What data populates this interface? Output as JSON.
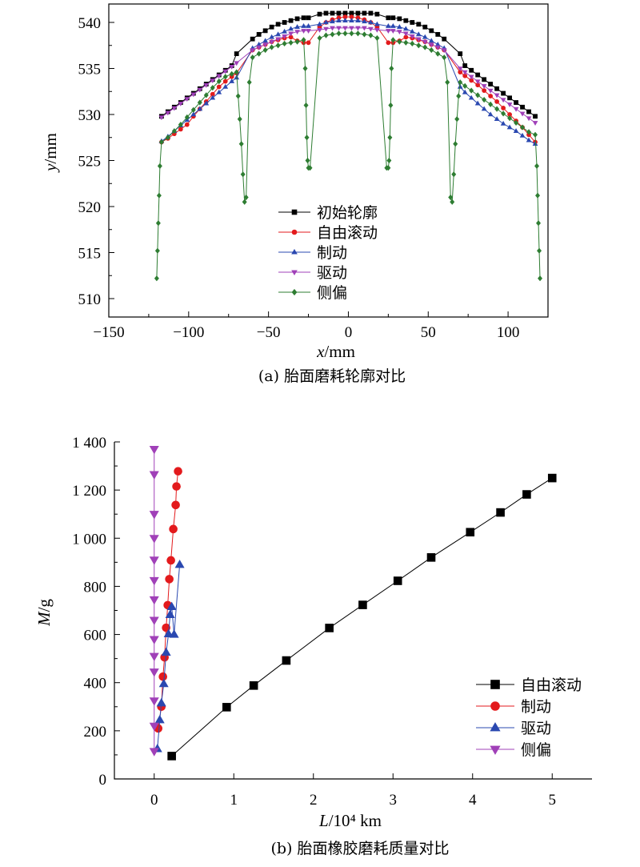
{
  "chart_data": [
    {
      "type": "scatter",
      "caption": "(a) 胎面磨耗轮廓对比",
      "xlabel_var": "x",
      "xlabel_unit": "/mm",
      "ylabel_var": "y",
      "ylabel_unit": "/mm",
      "xlim": [
        -150,
        125
      ],
      "ylim": [
        508,
        542
      ],
      "xticks": [
        -150,
        -100,
        -50,
        0,
        50,
        100
      ],
      "xtick_labels": [
        "−150",
        "−100",
        "−50",
        "0",
        "50",
        "100"
      ],
      "yticks": [
        510,
        515,
        520,
        525,
        530,
        535,
        540
      ],
      "ytick_labels": [
        "510",
        "515",
        "520",
        "525",
        "530",
        "535",
        "540"
      ],
      "legend_position": "bottom-center",
      "series": [
        {
          "name": "初始轮廓",
          "color": "#000000",
          "marker": "square",
          "x": [
            -117,
            -113,
            -109,
            -105,
            -101,
            -97,
            -93,
            -89,
            -85,
            -81,
            -77,
            -73,
            -70,
            -60,
            -56,
            -52,
            -48,
            -44,
            -40,
            -36,
            -32,
            -28,
            -25,
            -18,
            -14,
            -10,
            -6,
            -2,
            2,
            6,
            10,
            14,
            18,
            25,
            28,
            32,
            36,
            40,
            44,
            48,
            52,
            56,
            60,
            70,
            73,
            77,
            81,
            85,
            89,
            93,
            97,
            101,
            105,
            109,
            113,
            117
          ],
          "y": [
            529.8,
            530.3,
            530.8,
            531.3,
            531.8,
            532.3,
            532.8,
            533.3,
            533.8,
            534.3,
            534.8,
            535.3,
            536.6,
            538.2,
            538.7,
            539.1,
            539.5,
            539.8,
            540.0,
            540.2,
            540.4,
            540.5,
            540.5,
            540.9,
            541.0,
            541.0,
            541.0,
            541.0,
            541.0,
            541.0,
            541.0,
            541.0,
            540.9,
            540.5,
            540.5,
            540.4,
            540.2,
            540.0,
            539.8,
            539.5,
            539.1,
            538.7,
            538.2,
            536.6,
            535.3,
            534.8,
            534.3,
            533.8,
            533.3,
            532.8,
            532.3,
            531.8,
            531.3,
            530.8,
            530.3,
            529.8
          ]
        },
        {
          "name": "自由滚动",
          "color": "#e31a1c",
          "marker": "circle",
          "x": [
            -117,
            -113,
            -109,
            -105,
            -101,
            -97,
            -93,
            -89,
            -85,
            -81,
            -77,
            -73,
            -70,
            -60,
            -56,
            -52,
            -48,
            -44,
            -40,
            -36,
            -32,
            -28,
            -25,
            -18,
            -14,
            -10,
            -6,
            -2,
            2,
            6,
            10,
            14,
            18,
            25,
            28,
            32,
            36,
            40,
            44,
            48,
            52,
            56,
            60,
            70,
            73,
            77,
            81,
            85,
            89,
            93,
            97,
            101,
            105,
            109,
            113,
            117
          ],
          "y": [
            527.0,
            527.4,
            527.9,
            528.4,
            528.9,
            529.8,
            530.6,
            531.4,
            532.2,
            533.0,
            533.6,
            534.1,
            534.5,
            537.0,
            537.3,
            537.6,
            537.9,
            538.1,
            538.3,
            538.4,
            538.0,
            537.8,
            537.8,
            539.5,
            540.0,
            540.3,
            540.5,
            540.6,
            540.6,
            540.5,
            540.3,
            540.0,
            539.5,
            537.8,
            537.8,
            538.0,
            538.4,
            538.3,
            538.1,
            537.9,
            537.6,
            537.3,
            537.0,
            534.6,
            534.2,
            533.7,
            533.2,
            532.6,
            532.0,
            531.4,
            530.7,
            530.0,
            529.3,
            528.6,
            527.8,
            527.0
          ]
        },
        {
          "name": "制动",
          "color": "#2a48b0",
          "marker": "triangle-up",
          "x": [
            -117,
            -113,
            -109,
            -105,
            -101,
            -97,
            -93,
            -89,
            -85,
            -81,
            -77,
            -73,
            -70,
            -60,
            -56,
            -52,
            -48,
            -44,
            -40,
            -36,
            -32,
            -28,
            -25,
            -18,
            -14,
            -10,
            -6,
            -2,
            2,
            6,
            10,
            14,
            18,
            25,
            28,
            32,
            36,
            40,
            44,
            48,
            52,
            56,
            60,
            70,
            73,
            77,
            81,
            85,
            89,
            93,
            97,
            101,
            105,
            109,
            113,
            117
          ],
          "y": [
            527.1,
            527.6,
            528.2,
            528.8,
            529.4,
            530.0,
            530.6,
            531.2,
            531.8,
            532.4,
            533.0,
            533.6,
            534.0,
            537.2,
            537.6,
            538.0,
            538.4,
            538.7,
            539.0,
            539.3,
            539.5,
            539.6,
            539.6,
            539.8,
            540.0,
            540.1,
            540.2,
            540.2,
            540.2,
            540.2,
            540.1,
            540.0,
            539.8,
            539.6,
            539.6,
            539.5,
            539.3,
            539.0,
            538.7,
            538.4,
            538.0,
            537.6,
            537.2,
            533.0,
            532.4,
            531.8,
            531.2,
            530.6,
            530.0,
            529.5,
            529.0,
            528.6,
            528.2,
            527.7,
            527.2,
            526.8
          ]
        },
        {
          "name": "驱动",
          "color": "#a040b8",
          "marker": "triangle-down",
          "x": [
            -117,
            -113,
            -109,
            -105,
            -101,
            -97,
            -93,
            -89,
            -85,
            -81,
            -77,
            -73,
            -70,
            -60,
            -56,
            -52,
            -48,
            -44,
            -40,
            -36,
            -32,
            -28,
            -25,
            -18,
            -14,
            -10,
            -6,
            -2,
            2,
            6,
            10,
            14,
            18,
            25,
            28,
            32,
            36,
            40,
            44,
            48,
            52,
            56,
            60,
            70,
            73,
            77,
            81,
            85,
            89,
            93,
            97,
            101,
            105,
            109,
            113,
            117
          ],
          "y": [
            529.7,
            530.2,
            530.7,
            531.2,
            531.7,
            532.2,
            532.7,
            533.2,
            533.7,
            534.2,
            534.7,
            535.2,
            535.6,
            537.0,
            537.3,
            537.6,
            537.9,
            538.2,
            538.5,
            538.8,
            539.0,
            539.1,
            539.1,
            539.2,
            539.3,
            539.4,
            539.4,
            539.4,
            539.4,
            539.4,
            539.4,
            539.3,
            539.2,
            539.1,
            539.1,
            539.0,
            538.8,
            538.5,
            538.2,
            537.9,
            537.6,
            537.3,
            537.0,
            535.0,
            534.6,
            534.1,
            533.6,
            533.1,
            532.6,
            532.1,
            531.6,
            531.1,
            530.6,
            530.1,
            529.6,
            529.1
          ]
        },
        {
          "name": "侧偏",
          "color": "#2e7d32",
          "marker": "diamond",
          "x": [
            -120,
            -119.5,
            -119,
            -118.5,
            -118,
            -117,
            -113,
            -109,
            -105,
            -101,
            -97,
            -93,
            -89,
            -85,
            -81,
            -77,
            -73,
            -70,
            -69,
            -68,
            -67,
            -66,
            -65,
            -64,
            -62,
            -60,
            -56,
            -52,
            -48,
            -44,
            -40,
            -36,
            -32,
            -28,
            -27,
            -26.5,
            -26,
            -25.5,
            -25,
            -24,
            -18,
            -14,
            -10,
            -6,
            -2,
            2,
            6,
            10,
            14,
            18,
            24,
            25,
            25.5,
            26,
            26.5,
            27,
            28,
            32,
            36,
            40,
            44,
            48,
            52,
            56,
            60,
            62,
            64,
            65,
            66,
            67,
            68,
            69,
            70,
            73,
            77,
            81,
            85,
            89,
            93,
            97,
            101,
            105,
            109,
            113,
            117,
            118,
            118.5,
            119,
            119.5,
            120
          ],
          "y": [
            512.2,
            515.2,
            518.2,
            521.2,
            524.4,
            527.0,
            527.5,
            528.2,
            528.9,
            529.7,
            530.5,
            531.3,
            532.1,
            532.9,
            533.6,
            534.1,
            534.4,
            534.6,
            532.0,
            529.5,
            526.8,
            523.5,
            520.5,
            521.0,
            533.5,
            536.2,
            536.6,
            537.0,
            537.3,
            537.5,
            537.7,
            537.8,
            537.9,
            538.1,
            535.0,
            531.0,
            527.5,
            525.0,
            524.2,
            524.2,
            538.3,
            538.6,
            538.7,
            538.8,
            538.8,
            538.8,
            538.8,
            538.7,
            538.6,
            538.3,
            524.2,
            524.2,
            525.0,
            527.5,
            531.0,
            535.0,
            538.1,
            537.9,
            537.8,
            537.7,
            537.5,
            537.3,
            537.0,
            536.6,
            536.2,
            533.5,
            521.0,
            520.5,
            523.5,
            526.8,
            529.5,
            532.0,
            533.5,
            533.1,
            532.6,
            532.1,
            531.6,
            531.1,
            530.6,
            530.1,
            529.6,
            529.1,
            528.6,
            528.1,
            527.8,
            524.4,
            521.2,
            518.2,
            515.2,
            512.2
          ]
        }
      ]
    },
    {
      "type": "line",
      "caption": "(b) 胎面橡胶磨耗质量对比",
      "xlabel_var": "L",
      "xlabel_unit": "/10⁴ km",
      "ylabel_var": "M",
      "ylabel_unit": "/g",
      "xlim": [
        -0.5,
        5.5
      ],
      "ylim": [
        0,
        1400
      ],
      "xticks": [
        0,
        1,
        2,
        3,
        4,
        5
      ],
      "xtick_labels": [
        "0",
        "1",
        "2",
        "3",
        "4",
        "5"
      ],
      "yticks": [
        0,
        200,
        400,
        600,
        800,
        1000,
        1200,
        1400
      ],
      "ytick_labels": [
        "0",
        "200",
        "400",
        "600",
        "800",
        "1 000",
        "1 200",
        "1 400"
      ],
      "legend_position": "bottom-right",
      "series": [
        {
          "name": "自由滚动",
          "color": "#000000",
          "marker": "square",
          "x": [
            0.22,
            0.91,
            1.25,
            1.66,
            2.2,
            2.62,
            3.06,
            3.48,
            3.97,
            4.35,
            4.68,
            5.0
          ],
          "y": [
            95,
            298,
            388,
            492,
            627,
            723,
            823,
            920,
            1025,
            1107,
            1182,
            1250
          ]
        },
        {
          "name": "制动",
          "color": "#e31a1c",
          "marker": "circle",
          "x": [
            0.05,
            0.09,
            0.11,
            0.13,
            0.15,
            0.17,
            0.19,
            0.21,
            0.24,
            0.27,
            0.28,
            0.3
          ],
          "y": [
            210,
            300,
            425,
            505,
            628,
            722,
            830,
            908,
            1038,
            1138,
            1215,
            1278
          ]
        },
        {
          "name": "驱动",
          "color": "#2a48b0",
          "marker": "triangle-up",
          "x": [
            0.04,
            0.07,
            0.09,
            0.12,
            0.15,
            0.18,
            0.2,
            0.22,
            0.25,
            0.32
          ],
          "y": [
            125,
            245,
            315,
            395,
            525,
            602,
            682,
            715,
            600,
            890
          ]
        },
        {
          "name": "侧偏",
          "color": "#a040b8",
          "marker": "triangle-down",
          "x": [
            0,
            0,
            0,
            0,
            0,
            0,
            0,
            0,
            0,
            0,
            0,
            0,
            0,
            0
          ],
          "y": [
            115,
            220,
            325,
            445,
            510,
            580,
            660,
            745,
            825,
            910,
            1000,
            1100,
            1265,
            1370
          ]
        }
      ]
    }
  ]
}
